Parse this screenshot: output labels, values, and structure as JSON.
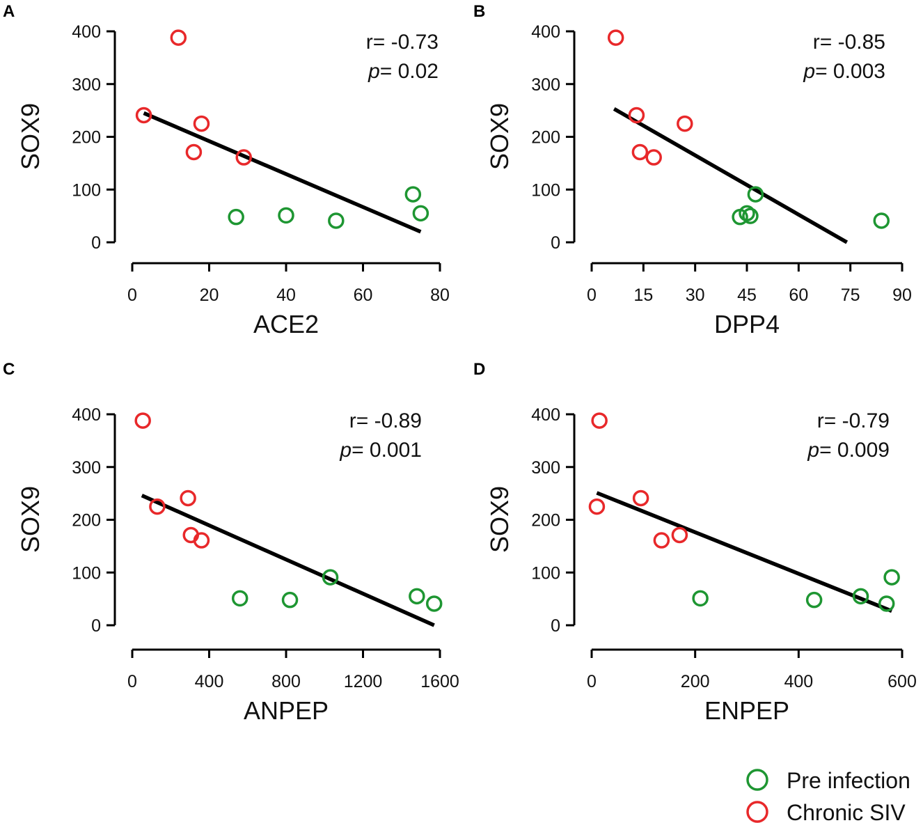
{
  "chart_data": [
    {
      "type": "scatter",
      "panel": "A",
      "xlabel": "ACE2",
      "ylabel": "SOX9",
      "xlim": [
        0,
        80
      ],
      "ylim": [
        0,
        400
      ],
      "xticks": [
        0,
        20,
        40,
        60,
        80
      ],
      "yticks": [
        0,
        100,
        200,
        300,
        400
      ],
      "stats": {
        "r": "r= -0.73",
        "p_label": "p",
        "p_value": "= 0.02"
      },
      "regression": {
        "x": [
          3,
          75
        ],
        "y": [
          245,
          20
        ]
      },
      "series": [
        {
          "name": "Pre infection",
          "color": "#1e9632",
          "points": [
            [
              27,
              48
            ],
            [
              40,
              51
            ],
            [
              53,
              41
            ],
            [
              73,
              91
            ],
            [
              75,
              55
            ]
          ]
        },
        {
          "name": "Chronic SIV",
          "color": "#e8282a",
          "points": [
            [
              12,
              388
            ],
            [
              3,
              241
            ],
            [
              18,
              225
            ],
            [
              16,
              171
            ],
            [
              29,
              161
            ]
          ]
        }
      ]
    },
    {
      "type": "scatter",
      "panel": "B",
      "xlabel": "DPP4",
      "ylabel": "SOX9",
      "xlim": [
        0,
        90
      ],
      "ylim": [
        0,
        400
      ],
      "xticks": [
        0,
        15,
        30,
        45,
        60,
        75,
        90
      ],
      "yticks": [
        0,
        100,
        200,
        300,
        400
      ],
      "stats": {
        "r": "r= -0.85",
        "p_label": "p",
        "p_value": "= 0.003"
      },
      "regression": {
        "x": [
          6.5,
          74
        ],
        "y": [
          253,
          0
        ]
      },
      "series": [
        {
          "name": "Pre infection",
          "color": "#1e9632",
          "points": [
            [
              43,
              48
            ],
            [
              45,
              55
            ],
            [
              46,
              50
            ],
            [
              47.5,
              91
            ],
            [
              84,
              41
            ]
          ]
        },
        {
          "name": "Chronic SIV",
          "color": "#e8282a",
          "points": [
            [
              7,
              388
            ],
            [
              13,
              241
            ],
            [
              27,
              225
            ],
            [
              14,
              171
            ],
            [
              18,
              161
            ]
          ]
        }
      ]
    },
    {
      "type": "scatter",
      "panel": "C",
      "xlabel": "ANPEP",
      "ylabel": "SOX9",
      "xlim": [
        0,
        1600
      ],
      "ylim": [
        0,
        400
      ],
      "xticks": [
        0,
        400,
        800,
        1200,
        1600
      ],
      "yticks": [
        0,
        100,
        200,
        300,
        400
      ],
      "stats": {
        "r": "r= -0.89",
        "p_label": "p",
        "p_value": "= 0.001"
      },
      "regression": {
        "x": [
          50,
          1570
        ],
        "y": [
          246,
          0
        ]
      },
      "series": [
        {
          "name": "Pre infection",
          "color": "#1e9632",
          "points": [
            [
              560,
              51
            ],
            [
              820,
              48
            ],
            [
              1030,
              91
            ],
            [
              1480,
              55
            ],
            [
              1570,
              41
            ]
          ]
        },
        {
          "name": "Chronic SIV",
          "color": "#e8282a",
          "points": [
            [
              55,
              388
            ],
            [
              290,
              241
            ],
            [
              130,
              225
            ],
            [
              305,
              171
            ],
            [
              360,
              161
            ]
          ]
        }
      ]
    },
    {
      "type": "scatter",
      "panel": "D",
      "xlabel": "ENPEP",
      "ylabel": "SOX9",
      "xlim": [
        0,
        600
      ],
      "ylim": [
        0,
        400
      ],
      "xticks": [
        0,
        200,
        400,
        600
      ],
      "yticks": [
        0,
        100,
        200,
        300,
        400
      ],
      "stats": {
        "r": "r= -0.79",
        "p_label": "p",
        "p_value": "= 0.009"
      },
      "regression": {
        "x": [
          10,
          580
        ],
        "y": [
          251,
          27
        ]
      },
      "series": [
        {
          "name": "Pre infection",
          "color": "#1e9632",
          "points": [
            [
              210,
              51
            ],
            [
              430,
              48
            ],
            [
              520,
              55
            ],
            [
              570,
              41
            ],
            [
              580,
              91
            ]
          ]
        },
        {
          "name": "Chronic SIV",
          "color": "#e8282a",
          "points": [
            [
              15,
              388
            ],
            [
              95,
              241
            ],
            [
              10,
              225
            ],
            [
              170,
              171
            ],
            [
              135,
              161
            ]
          ]
        }
      ]
    }
  ],
  "legend": [
    {
      "label": "Pre infection",
      "color": "#1e9632"
    },
    {
      "label": "Chronic SIV",
      "color": "#e8282a"
    }
  ]
}
